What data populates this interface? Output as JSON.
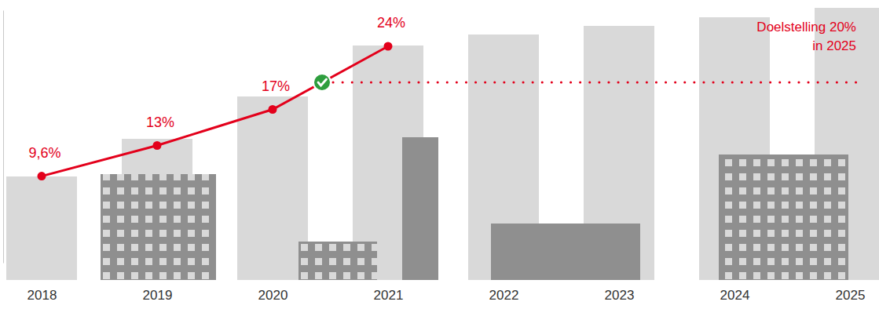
{
  "chart_data": {
    "type": "line",
    "categories": [
      "2018",
      "2019",
      "2020",
      "2021",
      "2022",
      "2023",
      "2024",
      "2025"
    ],
    "values": [
      9.6,
      13,
      17,
      24,
      null,
      null,
      null,
      null
    ],
    "value_labels": [
      "9,6%",
      "13%",
      "17%",
      "24%",
      null,
      null,
      null,
      null
    ],
    "data_labels": true,
    "color": "#e3001b",
    "marker": "circle",
    "ylim": [
      0,
      28
    ],
    "tick_labels": "x",
    "target": {
      "value": 20,
      "label": [
        "Doelstelling 20%",
        "in 2025"
      ]
    }
  }
}
